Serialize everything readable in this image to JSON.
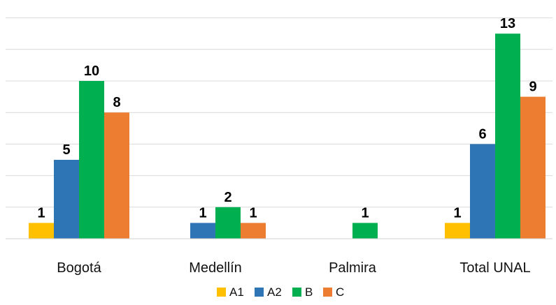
{
  "chart_data": {
    "type": "bar",
    "title": "",
    "xlabel": "",
    "ylabel": "",
    "categories": [
      "Bogotá",
      "Medellín",
      "Palmira",
      "Total UNAL"
    ],
    "series": [
      {
        "name": "A1",
        "color": "#FFC000",
        "values": [
          1,
          null,
          null,
          1
        ]
      },
      {
        "name": "A2",
        "color": "#2E75B6",
        "values": [
          5,
          1,
          null,
          6
        ]
      },
      {
        "name": "B",
        "color": "#00B050",
        "values": [
          10,
          2,
          1,
          13
        ]
      },
      {
        "name": "C",
        "color": "#ED7D31",
        "values": [
          8,
          1,
          null,
          9
        ]
      }
    ],
    "ylim": [
      0,
      14
    ],
    "grid": true,
    "legend_position": "bottom",
    "data_labels": true
  }
}
